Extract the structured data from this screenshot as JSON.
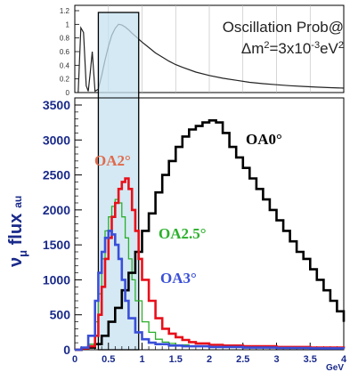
{
  "chart_data": [
    {
      "type": "line",
      "panel": "top",
      "title": "Oscillation Prob@",
      "subtitle": [
        "Δm",
        "2",
        "=3x10",
        "-3",
        "eV",
        "2"
      ],
      "y_ticks": [
        "0",
        "0.2",
        "0.4",
        "0.6",
        "0.8",
        "1",
        "1.2"
      ],
      "ylim": [
        0,
        1.2
      ],
      "xlim": [
        0,
        4
      ],
      "series": [
        {
          "color": "#222222",
          "x": [
            0.05,
            0.09,
            0.13,
            0.17,
            0.2,
            0.23,
            0.26,
            0.3,
            0.35,
            0.4,
            0.45,
            0.5,
            0.55,
            0.6,
            0.65,
            0.7,
            0.75,
            0.8,
            0.85,
            0.9,
            1.0,
            1.1,
            1.2,
            1.3,
            1.4,
            1.5,
            1.6,
            1.8,
            2.0,
            2.2,
            2.4,
            2.6,
            2.8,
            3.0,
            3.2,
            3.4,
            3.6,
            3.8,
            4.0
          ],
          "y": [
            0.0,
            0.95,
            0.88,
            0.1,
            0.02,
            0.3,
            0.6,
            0.02,
            0.05,
            0.25,
            0.48,
            0.68,
            0.84,
            0.94,
            1.0,
            0.99,
            0.96,
            0.92,
            0.87,
            0.83,
            0.74,
            0.66,
            0.58,
            0.52,
            0.46,
            0.41,
            0.37,
            0.3,
            0.25,
            0.21,
            0.18,
            0.15,
            0.13,
            0.115,
            0.1,
            0.09,
            0.08,
            0.072,
            0.065
          ]
        }
      ]
    },
    {
      "type": "line",
      "panel": "bottom",
      "ylabel": [
        "ν",
        "μ",
        " flux",
        "au"
      ],
      "x_ticks": [
        "0",
        "0.5",
        "1",
        "1.5",
        "2",
        "2.5",
        "3",
        "3.5",
        "4"
      ],
      "x_unit": "GeV",
      "y_ticks": [
        "0",
        "500",
        "1000",
        "1500",
        "2000",
        "2500",
        "3000",
        "3500"
      ],
      "xlim": [
        0,
        4
      ],
      "ylim": [
        0,
        3500
      ],
      "highlight_band": [
        0.35,
        0.95
      ],
      "series": [
        {
          "name": "OA0°",
          "color": "#000000",
          "x": [
            0.0,
            0.1,
            0.2,
            0.3,
            0.4,
            0.5,
            0.6,
            0.7,
            0.8,
            0.9,
            1.0,
            1.1,
            1.2,
            1.3,
            1.4,
            1.5,
            1.6,
            1.7,
            1.8,
            1.9,
            2.0,
            2.1,
            2.2,
            2.3,
            2.4,
            2.5,
            2.6,
            2.7,
            2.8,
            2.9,
            3.0,
            3.1,
            3.2,
            3.3,
            3.4,
            3.5,
            3.6,
            3.7,
            3.8,
            3.9,
            4.0
          ],
          "y": [
            0,
            10,
            30,
            80,
            200,
            400,
            600,
            850,
            1100,
            1400,
            1700,
            1950,
            2250,
            2500,
            2700,
            2900,
            3050,
            3150,
            3200,
            3250,
            3280,
            3250,
            3100,
            2900,
            2750,
            2600,
            2450,
            2300,
            2150,
            2000,
            1850,
            1700,
            1550,
            1400,
            1300,
            1150,
            1000,
            850,
            700,
            550,
            400
          ]
        },
        {
          "name": "OA2°",
          "color": "#e8101a",
          "x": [
            0.0,
            0.1,
            0.2,
            0.3,
            0.35,
            0.4,
            0.45,
            0.5,
            0.55,
            0.6,
            0.65,
            0.7,
            0.75,
            0.8,
            0.85,
            0.9,
            0.95,
            1.0,
            1.1,
            1.2,
            1.3,
            1.4,
            1.5,
            1.6,
            1.7,
            1.8,
            2.0,
            2.2,
            2.5,
            3.0,
            3.5,
            4.0
          ],
          "y": [
            0,
            20,
            50,
            200,
            500,
            900,
            1300,
            1600,
            1900,
            2100,
            2300,
            2400,
            2450,
            2300,
            2000,
            1700,
            1300,
            1000,
            700,
            450,
            300,
            230,
            180,
            140,
            110,
            90,
            70,
            60,
            50,
            40,
            30,
            25
          ]
        },
        {
          "name": "OA2.5°",
          "color": "#2bb02b",
          "x": [
            0.0,
            0.1,
            0.2,
            0.3,
            0.35,
            0.4,
            0.45,
            0.5,
            0.55,
            0.6,
            0.65,
            0.7,
            0.75,
            0.8,
            0.85,
            0.9,
            1.0,
            1.1,
            1.2,
            1.3,
            1.4,
            1.5,
            1.7,
            2.0,
            2.5,
            3.0,
            4.0
          ],
          "y": [
            0,
            20,
            80,
            400,
            800,
            1300,
            1700,
            1900,
            2050,
            2150,
            2100,
            1900,
            1600,
            1300,
            1000,
            700,
            400,
            250,
            150,
            110,
            90,
            70,
            50,
            40,
            30,
            20,
            15
          ]
        },
        {
          "name": "OA3°",
          "color": "#3a4fd8",
          "x": [
            0.0,
            0.1,
            0.2,
            0.3,
            0.35,
            0.4,
            0.45,
            0.5,
            0.55,
            0.6,
            0.65,
            0.7,
            0.75,
            0.8,
            0.9,
            1.0,
            1.1,
            1.2,
            1.4,
            1.6,
            2.0,
            2.5,
            3.0,
            3.5,
            4.0
          ],
          "y": [
            0,
            30,
            200,
            700,
            1100,
            1400,
            1600,
            1700,
            1650,
            1500,
            1300,
            1000,
            700,
            450,
            250,
            150,
            100,
            80,
            60,
            50,
            40,
            30,
            25,
            20,
            15
          ]
        }
      ]
    }
  ]
}
